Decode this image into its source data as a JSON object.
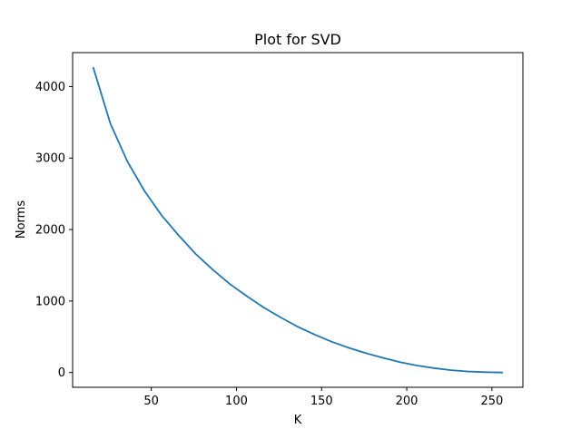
{
  "chart_data": {
    "type": "line",
    "title": "Plot for SVD",
    "xlabel": "K",
    "ylabel": "Norms",
    "xlim": [
      3.8,
      268.2
    ],
    "ylim": [
      -207,
      4475
    ],
    "xticks": [
      50,
      100,
      150,
      200,
      250
    ],
    "yticks": [
      0,
      1000,
      2000,
      3000,
      4000
    ],
    "grid": false,
    "series": [
      {
        "color": "#1f77b4",
        "x": [
          16,
          26,
          36,
          46,
          56,
          66,
          76,
          86,
          96,
          106,
          116,
          126,
          136,
          146,
          156,
          166,
          176,
          186,
          196,
          206,
          216,
          226,
          236,
          246,
          256
        ],
        "y": [
          4260,
          3480,
          2950,
          2540,
          2200,
          1920,
          1660,
          1440,
          1240,
          1070,
          910,
          770,
          640,
          530,
          430,
          345,
          270,
          205,
          145,
          98,
          62,
          32,
          14,
          5,
          0
        ]
      }
    ]
  }
}
